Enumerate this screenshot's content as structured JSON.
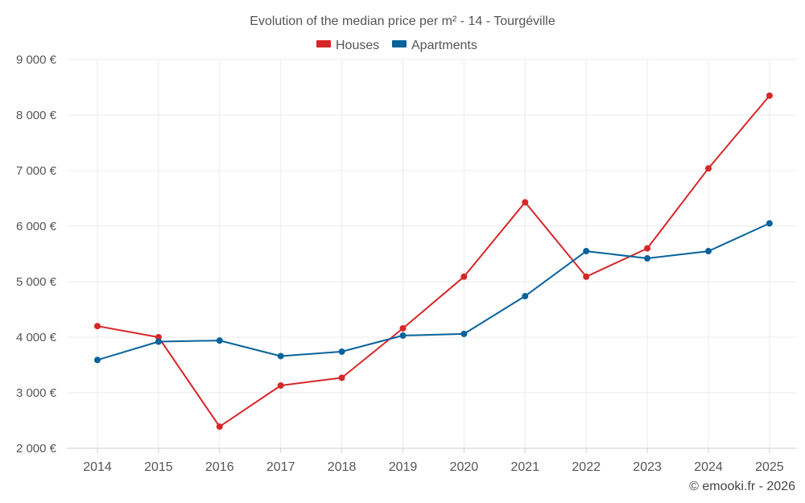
{
  "chart_data": {
    "type": "line",
    "title": "Evolution of the median price per m² - 14 - Tourgéville",
    "categories": [
      "2014",
      "2015",
      "2016",
      "2017",
      "2018",
      "2019",
      "2020",
      "2021",
      "2022",
      "2023",
      "2024",
      "2025"
    ],
    "series": [
      {
        "name": "Houses",
        "color": "#d62728",
        "values": [
          4200,
          4000,
          2390,
          3130,
          3270,
          4160,
          5090,
          6430,
          5090,
          5600,
          7040,
          8350
        ]
      },
      {
        "name": "Apartments",
        "color": "#08629b",
        "values": [
          3590,
          3920,
          3940,
          3660,
          3740,
          4030,
          4060,
          4740,
          5550,
          5420,
          5550,
          6050
        ]
      }
    ],
    "ylim": [
      2000,
      9000
    ],
    "yticks": [
      2000,
      3000,
      4000,
      5000,
      6000,
      7000,
      8000,
      9000
    ],
    "ytick_labels": [
      "2 000 €",
      "3 000 €",
      "4 000 €",
      "5 000 €",
      "6 000 €",
      "7 000 €",
      "8 000 €",
      "9 000 €"
    ],
    "xlabel": "",
    "ylabel": "",
    "grid": true,
    "legend_position": "top-center",
    "credit": "© emooki.fr - 2026"
  }
}
